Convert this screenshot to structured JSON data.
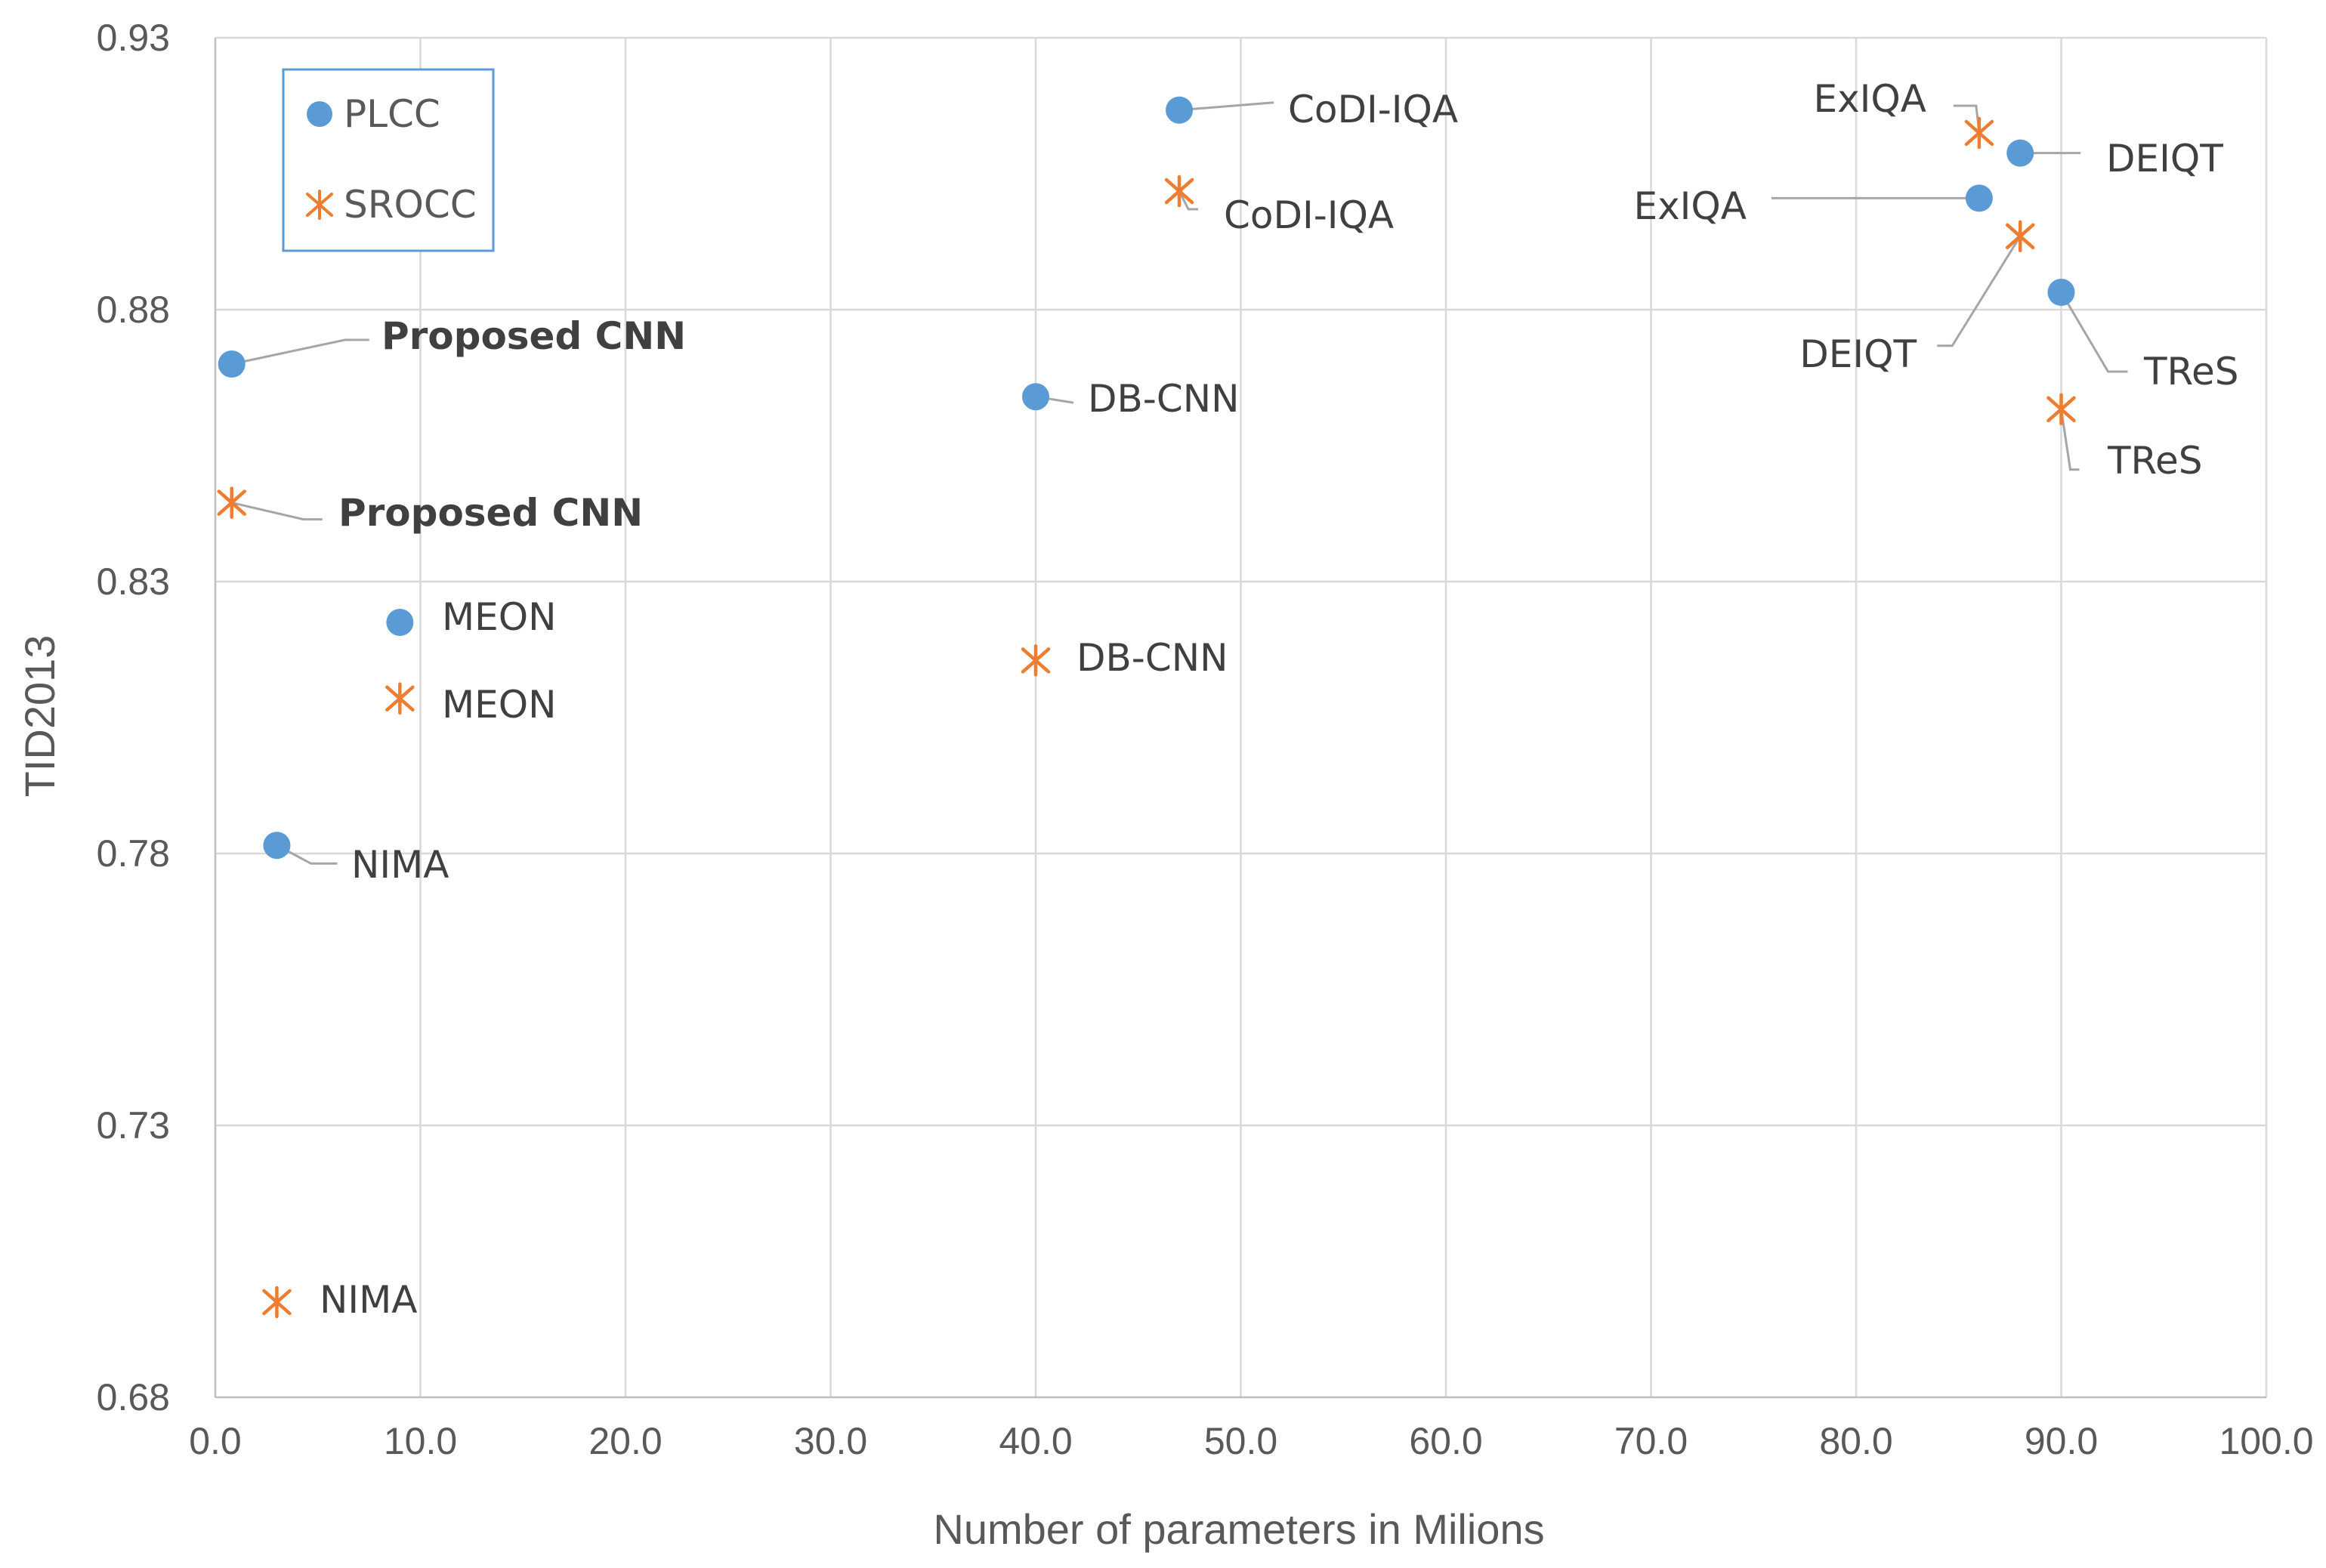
{
  "chart_data": {
    "type": "scatter",
    "title": "",
    "xlabel": "Number of parameters in Milions",
    "ylabel": "TID2013",
    "xlim": [
      0,
      100
    ],
    "ylim": [
      0.68,
      0.93
    ],
    "x_ticks": [
      "0.0",
      "10.0",
      "20.0",
      "30.0",
      "40.0",
      "50.0",
      "60.0",
      "70.0",
      "80.0",
      "90.0",
      "100.0"
    ],
    "y_ticks": [
      "0.68",
      "0.73",
      "0.78",
      "0.83",
      "0.88",
      "0.93"
    ],
    "grid": true,
    "legend_position": "top-left",
    "colors": {
      "plcc": "#5b9bd5",
      "srocc": "#ed7d31"
    },
    "series": [
      {
        "name": "PLCC",
        "marker": "circle",
        "points": [
          {
            "label": "Proposed CNN",
            "x": 0.8,
            "y": 0.87,
            "bold": true
          },
          {
            "label": "MEON",
            "x": 9.0,
            "y": 0.8225,
            "bold": false
          },
          {
            "label": "NIMA",
            "x": 3.0,
            "y": 0.7815,
            "bold": false
          },
          {
            "label": "DB-CNN",
            "x": 40.0,
            "y": 0.864,
            "bold": false
          },
          {
            "label": "CoDI-IQA",
            "x": 47.0,
            "y": 0.9167,
            "bold": false
          },
          {
            "label": "ExIQA",
            "x": 86.0,
            "y": 0.9005,
            "bold": false
          },
          {
            "label": "DEIQT",
            "x": 88.0,
            "y": 0.9088,
            "bold": false
          },
          {
            "label": "TReS",
            "x": 90.0,
            "y": 0.8832,
            "bold": false
          }
        ]
      },
      {
        "name": "SROCC",
        "marker": "star",
        "points": [
          {
            "label": "Proposed CNN",
            "x": 0.8,
            "y": 0.8445,
            "bold": true
          },
          {
            "label": "MEON",
            "x": 9.0,
            "y": 0.8085,
            "bold": false
          },
          {
            "label": "NIMA",
            "x": 3.0,
            "y": 0.6975,
            "bold": false
          },
          {
            "label": "DB-CNN",
            "x": 40.0,
            "y": 0.8155,
            "bold": false
          },
          {
            "label": "CoDI-IQA",
            "x": 47.0,
            "y": 0.9018,
            "bold": false
          },
          {
            "label": "ExIQA",
            "x": 86.0,
            "y": 0.9125,
            "bold": false
          },
          {
            "label": "DEIQT",
            "x": 88.0,
            "y": 0.8935,
            "bold": false
          },
          {
            "label": "TReS",
            "x": 90.0,
            "y": 0.8617,
            "bold": false
          }
        ]
      }
    ]
  }
}
